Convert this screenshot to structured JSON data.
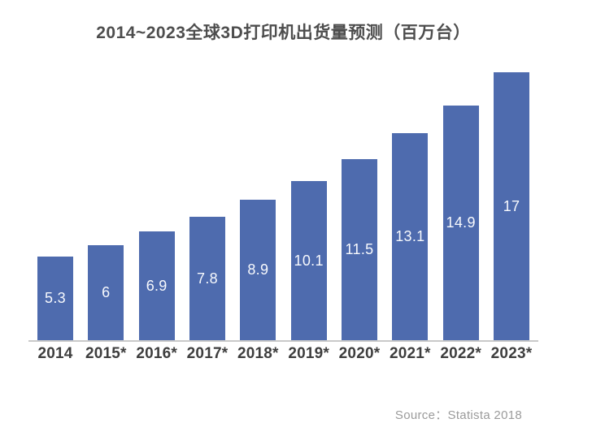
{
  "chart_data": {
    "type": "bar",
    "title": "2014~2023全球3D打印机出货量预测（百万台）",
    "categories": [
      "2014",
      "2015*",
      "2016*",
      "2017*",
      "2018*",
      "2019*",
      "2020*",
      "2021*",
      "2022*",
      "2023*"
    ],
    "values": [
      5.3,
      6,
      6.9,
      7.8,
      8.9,
      10.1,
      11.5,
      13.1,
      14.9,
      17
    ],
    "value_labels": [
      "5.3",
      "6",
      "6.9",
      "7.8",
      "8.9",
      "10.1",
      "11.5",
      "13.1",
      "14.9",
      "17"
    ],
    "xlabel": "",
    "ylabel": "",
    "ylim": [
      0,
      17.5
    ],
    "grid": false,
    "legend": null,
    "value_labels_position": "inside-center",
    "source_label": "Source：Statista 2018",
    "colors": {
      "bar": "#4e6bae",
      "value_label": "#f7f9fd",
      "title": "#4d4d4d",
      "category_label": "#3e3e3e",
      "axis_line": "#c9c9c9",
      "source": "#9b9b9b",
      "background": "#ffffff"
    }
  }
}
